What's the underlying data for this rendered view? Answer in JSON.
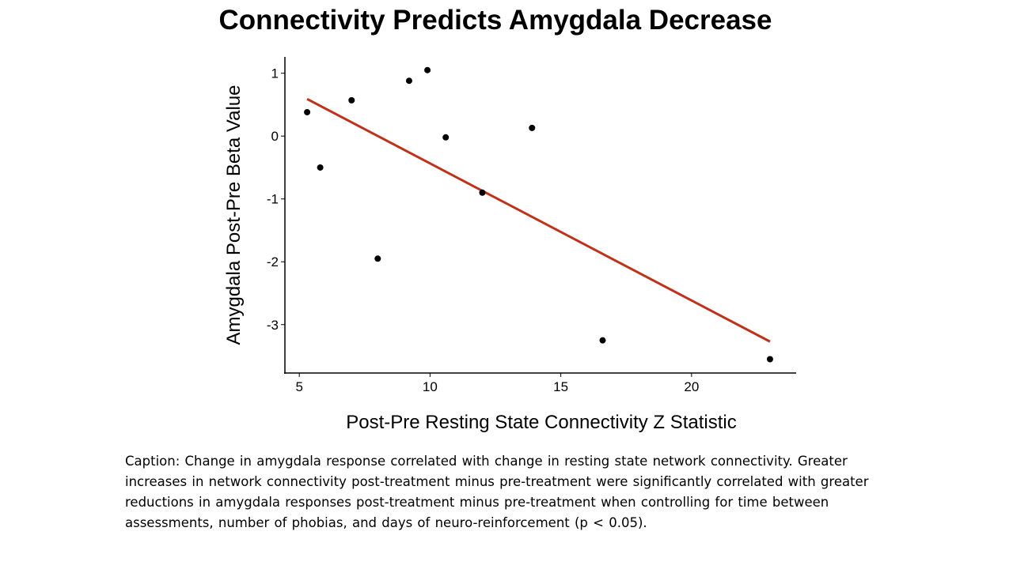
{
  "slide": {
    "title": "Connectivity Predicts Amygdala Decrease",
    "caption": "Caption: Change in amygdala response correlated with change in resting state network connectivity. Greater increases in network connectivity post-treatment minus pre-treatment were significantly correlated with greater reductions in amygdala responses post-treatment minus pre-treatment when controlling for time between assessments, number of phobias, and days of neuro-reinforcement (p < 0.05)."
  },
  "chart_data": {
    "type": "scatter",
    "title": "Connectivity Predicts Amygdala Decrease",
    "xlabel": "Post-Pre Resting State Connectivity Z Statistic",
    "ylabel": "Amygdala Post-Pre Beta Value",
    "xlim": [
      4.45,
      24.0
    ],
    "ylim": [
      -3.77,
      1.26
    ],
    "xticks": [
      5,
      10,
      15,
      20
    ],
    "yticks": [
      1,
      0,
      -1,
      -2,
      -3
    ],
    "grid": false,
    "points": [
      {
        "x": 5.3,
        "y": 0.38
      },
      {
        "x": 5.8,
        "y": -0.5
      },
      {
        "x": 7.0,
        "y": 0.57
      },
      {
        "x": 8.0,
        "y": -1.95
      },
      {
        "x": 9.2,
        "y": 0.88
      },
      {
        "x": 9.9,
        "y": 1.05
      },
      {
        "x": 10.6,
        "y": -0.02
      },
      {
        "x": 12.0,
        "y": -0.9
      },
      {
        "x": 13.9,
        "y": 0.13
      },
      {
        "x": 16.6,
        "y": -3.25
      },
      {
        "x": 23.0,
        "y": -3.55
      }
    ],
    "fit_line": {
      "x": [
        5.3,
        23.0
      ],
      "y": [
        0.59,
        -3.27
      ],
      "color": "#c0311a"
    },
    "point_color": "#000000"
  }
}
